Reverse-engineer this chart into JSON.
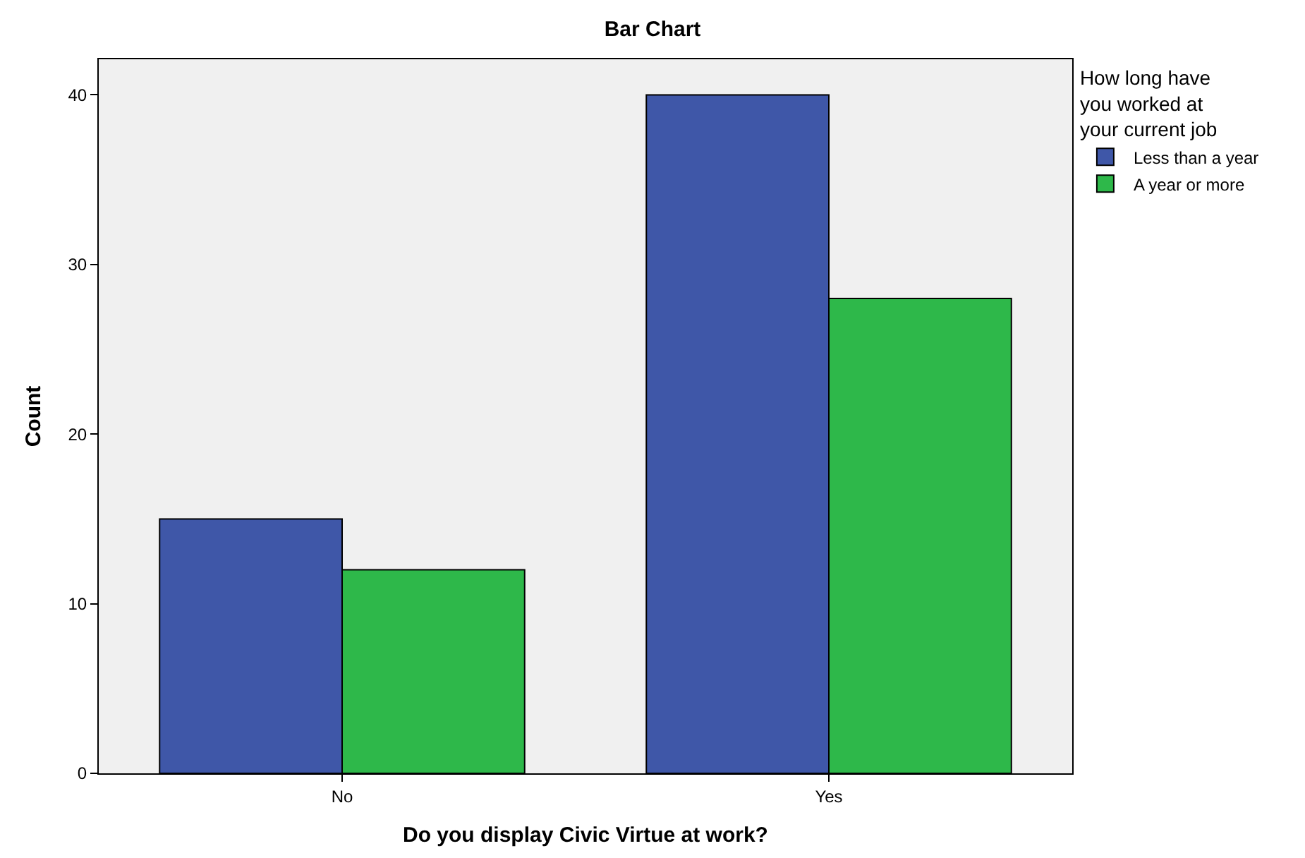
{
  "chart_data": {
    "type": "bar",
    "title": "Bar Chart",
    "xlabel": "Do you display Civic Virtue at work?",
    "ylabel": "Count",
    "legend_title": "How long have\nyou worked at\nyour current job",
    "categories": [
      "No",
      "Yes"
    ],
    "series": [
      {
        "name": "Less than a year",
        "color": "#3f57a8",
        "values": [
          15,
          40
        ]
      },
      {
        "name": "A year or more",
        "color": "#2eb84a",
        "values": [
          12,
          28
        ]
      }
    ],
    "ylim": [
      0,
      42.1
    ],
    "yticks": [
      0,
      10,
      20,
      30,
      40
    ],
    "grid": false,
    "legend": "top right"
  }
}
